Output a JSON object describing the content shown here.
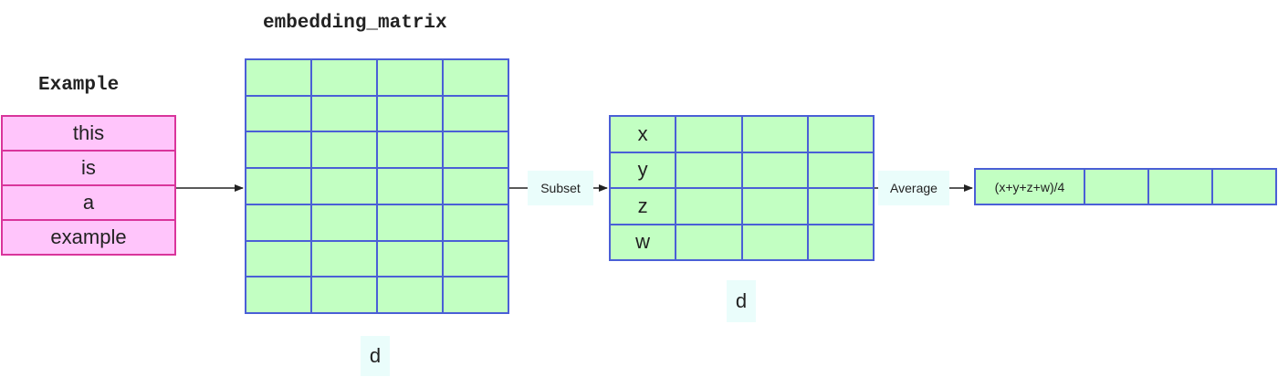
{
  "embedding_title": "embedding_matrix",
  "example": {
    "title": "Example",
    "tokens": [
      "this",
      "is",
      "a",
      "example"
    ]
  },
  "subset": {
    "label": "Subset",
    "row_labels": [
      "x",
      "y",
      "z",
      "w"
    ]
  },
  "average": {
    "label": "Average",
    "result_label": "(x+y+z+w)/4"
  },
  "dim_label": "d",
  "colors": {
    "token_fill": "#ffc5fb",
    "token_border": "#d9359b",
    "cell_fill": "#c2ffc2",
    "grid_border": "#4a5fd6",
    "tag_fill": "#eafdfb",
    "arrow": "#222222"
  }
}
